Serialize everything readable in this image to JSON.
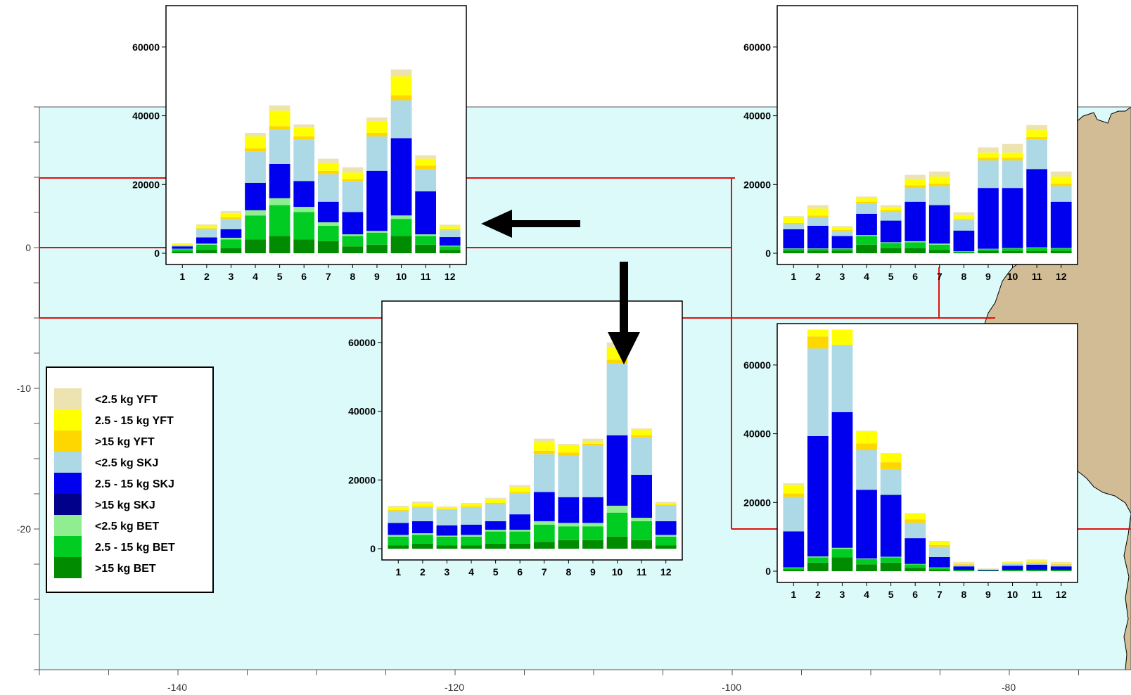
{
  "map": {
    "xticks": [
      "-140",
      "-120",
      "-100",
      "-80"
    ],
    "yticks": [
      "0",
      "-10",
      "-20"
    ],
    "colors": {
      "ocean": "#dcfafa",
      "land": "#d2bc96",
      "region_line": "#e01010",
      "arrow": "#000000"
    }
  },
  "legend": {
    "items": [
      {
        "label": "<2.5 kg YFT",
        "color": "#ede3b0"
      },
      {
        "label": "2.5 - 15 kg YFT",
        "color": "#ffff00"
      },
      {
        "label": ">15 kg YFT",
        "color": "#ffd700"
      },
      {
        "label": "<2.5 kg SKJ",
        "color": "#add8e6"
      },
      {
        "label": "2.5 - 15 kg SKJ",
        "color": "#0000ee"
      },
      {
        "label": ">15 kg SKJ",
        "color": "#00008b"
      },
      {
        "label": "<2.5 kg BET",
        "color": "#90ee90"
      },
      {
        "label": "2.5 - 15 kg BET",
        "color": "#00cc22"
      },
      {
        "label": ">15 kg BET",
        "color": "#008b00"
      }
    ]
  },
  "chart_data": [
    {
      "type": "bar",
      "stacked": true,
      "categories": [
        "1",
        "2",
        "3",
        "4",
        "5",
        "6",
        "7",
        "8",
        "9",
        "10",
        "11",
        "12"
      ],
      "yticks": [
        "0",
        "20000",
        "40000",
        "60000"
      ],
      "ylim": [
        0,
        70000
      ],
      "series": [
        {
          "name": ">15 kg BET",
          "values": [
            500,
            1000,
            1500,
            4000,
            5000,
            4000,
            3500,
            2000,
            2500,
            5000,
            2500,
            1000
          ]
        },
        {
          "name": "2.5 - 15 kg BET",
          "values": [
            700,
            1500,
            2500,
            7000,
            9000,
            8000,
            4500,
            3000,
            3500,
            5000,
            2500,
            1000
          ]
        },
        {
          "name": "<2.5 kg BET",
          "values": [
            100,
            300,
            500,
            1500,
            2000,
            1500,
            1000,
            500,
            500,
            1000,
            500,
            200
          ]
        },
        {
          "name": "2.5 - 15 kg SKJ",
          "values": [
            700,
            1800,
            2500,
            8000,
            10000,
            7500,
            6000,
            6500,
            17500,
            22500,
            12500,
            2500
          ]
        },
        {
          "name": "<2.5 kg SKJ",
          "values": [
            400,
            2500,
            3000,
            9000,
            10000,
            12000,
            8000,
            9000,
            10000,
            11000,
            6500,
            2000
          ]
        },
        {
          "name": ">15 kg YFT",
          "values": [
            100,
            200,
            500,
            1000,
            1000,
            1000,
            1000,
            500,
            1000,
            1500,
            1000,
            300
          ]
        },
        {
          "name": "2.5 - 15 kg YFT",
          "values": [
            200,
            600,
            1000,
            3500,
            4500,
            2500,
            2000,
            2000,
            3500,
            5500,
            2000,
            800
          ]
        },
        {
          "name": "<2.5 kg YFT",
          "values": [
            200,
            500,
            800,
            1000,
            1500,
            1000,
            1500,
            1500,
            1000,
            2000,
            1000,
            500
          ]
        }
      ]
    },
    {
      "type": "bar",
      "stacked": true,
      "categories": [
        "1",
        "2",
        "3",
        "4",
        "5",
        "6",
        "7",
        "8",
        "9",
        "10",
        "11",
        "12"
      ],
      "yticks": [
        "0",
        "20000",
        "40000",
        "60000"
      ],
      "ylim": [
        0,
        70000
      ],
      "series": [
        {
          "name": ">15 kg BET",
          "values": [
            800,
            800,
            800,
            2500,
            1500,
            1500,
            1000,
            200,
            700,
            700,
            700,
            700
          ]
        },
        {
          "name": "2.5 - 15 kg BET",
          "values": [
            500,
            500,
            500,
            2500,
            1500,
            1700,
            1500,
            300,
            500,
            700,
            900,
            700
          ]
        },
        {
          "name": "<2.5 kg BET",
          "values": [
            100,
            100,
            100,
            300,
            200,
            300,
            300,
            100,
            100,
            100,
            100,
            100
          ]
        },
        {
          "name": "2.5 - 15 kg SKJ",
          "values": [
            5600,
            6600,
            3600,
            6200,
            6300,
            11500,
            11200,
            6000,
            17700,
            17500,
            22800,
            13500
          ]
        },
        {
          "name": "<2.5 kg SKJ",
          "values": [
            1500,
            2500,
            1500,
            3000,
            2500,
            4000,
            5500,
            3000,
            8000,
            8000,
            8500,
            4500
          ]
        },
        {
          "name": ">15 kg YFT",
          "values": [
            300,
            500,
            300,
            500,
            500,
            800,
            800,
            300,
            800,
            800,
            800,
            800
          ]
        },
        {
          "name": "2.5 - 15 kg YFT",
          "values": [
            1500,
            2000,
            800,
            1000,
            1000,
            1500,
            2000,
            1000,
            1500,
            1500,
            2000,
            2000
          ]
        },
        {
          "name": "<2.5 kg YFT",
          "values": [
            500,
            1000,
            300,
            500,
            500,
            1500,
            1500,
            1000,
            1500,
            2500,
            1500,
            1500
          ]
        }
      ]
    },
    {
      "type": "bar",
      "stacked": true,
      "categories": [
        "1",
        "2",
        "3",
        "4",
        "5",
        "6",
        "7",
        "8",
        "9",
        "10",
        "11",
        "12"
      ],
      "yticks": [
        "0",
        "20000",
        "40000",
        "60000"
      ],
      "ylim": [
        0,
        70000
      ],
      "series": [
        {
          "name": ">15 kg BET",
          "values": [
            1000,
            1500,
            1000,
            1000,
            1500,
            1500,
            2000,
            2500,
            2500,
            3500,
            2500,
            1000
          ]
        },
        {
          "name": "2.5 - 15 kg BET",
          "values": [
            2500,
            2500,
            2500,
            2500,
            3500,
            3500,
            5000,
            4000,
            4000,
            7000,
            5500,
            2500
          ]
        },
        {
          "name": "<2.5 kg BET",
          "values": [
            500,
            500,
            300,
            500,
            500,
            500,
            1000,
            1000,
            1000,
            2000,
            1000,
            500
          ]
        },
        {
          "name": "2.5 - 15 kg SKJ",
          "values": [
            3500,
            3500,
            3000,
            3000,
            2500,
            4500,
            8500,
            7500,
            7500,
            20500,
            12500,
            4000
          ]
        },
        {
          "name": "<2.5 kg SKJ",
          "values": [
            3500,
            4000,
            4500,
            5000,
            5000,
            6000,
            11000,
            12000,
            15000,
            21000,
            11000,
            4500
          ]
        },
        {
          "name": ">15 kg YFT",
          "values": [
            300,
            300,
            300,
            300,
            300,
            500,
            1000,
            1000,
            500,
            1000,
            500,
            300
          ]
        },
        {
          "name": "2.5 - 15 kg YFT",
          "values": [
            800,
            1000,
            500,
            700,
            1000,
            1500,
            2500,
            2000,
            500,
            3500,
            1500,
            500
          ]
        },
        {
          "name": "<2.5 kg YFT",
          "values": [
            400,
            400,
            200,
            300,
            500,
            500,
            1000,
            500,
            1000,
            1500,
            500,
            300
          ]
        }
      ]
    },
    {
      "type": "bar",
      "stacked": true,
      "categories": [
        "1",
        "2",
        "3",
        "4",
        "5",
        "6",
        "7",
        "8",
        "9",
        "10",
        "11",
        "12"
      ],
      "yticks": [
        "0",
        "20000",
        "40000",
        "60000"
      ],
      "ylim": [
        0,
        70000
      ],
      "series": [
        {
          "name": ">15 kg BET",
          "values": [
            500,
            2500,
            4000,
            2000,
            2500,
            1000,
            500,
            200,
            100,
            200,
            200,
            200
          ]
        },
        {
          "name": "2.5 - 15 kg BET",
          "values": [
            500,
            1500,
            2500,
            1500,
            1500,
            1000,
            500,
            200,
            100,
            200,
            200,
            200
          ]
        },
        {
          "name": "<2.5 kg BET",
          "values": [
            100,
            300,
            300,
            200,
            200,
            100,
            100,
            0,
            0,
            0,
            0,
            0
          ]
        },
        {
          "name": "2.5 - 15 kg SKJ",
          "values": [
            10500,
            35000,
            39500,
            20000,
            18000,
            7500,
            3000,
            1000,
            200,
            1200,
            1500,
            1000
          ]
        },
        {
          "name": "<2.5 kg SKJ",
          "values": [
            10000,
            25500,
            19500,
            11500,
            7500,
            4500,
            3000,
            500,
            100,
            500,
            500,
            500
          ]
        },
        {
          "name": ">15 kg YFT",
          "values": [
            1000,
            3500,
            0,
            2000,
            2000,
            1000,
            500,
            200,
            0,
            200,
            200,
            200
          ]
        },
        {
          "name": "2.5 - 15 kg YFT",
          "values": [
            2500,
            2000,
            4500,
            3500,
            2500,
            1500,
            1000,
            300,
            100,
            300,
            500,
            300
          ]
        },
        {
          "name": "<2.5 kg YFT",
          "values": [
            500,
            0,
            0,
            200,
            200,
            300,
            200,
            300,
            200,
            200,
            300,
            300
          ]
        }
      ]
    }
  ]
}
